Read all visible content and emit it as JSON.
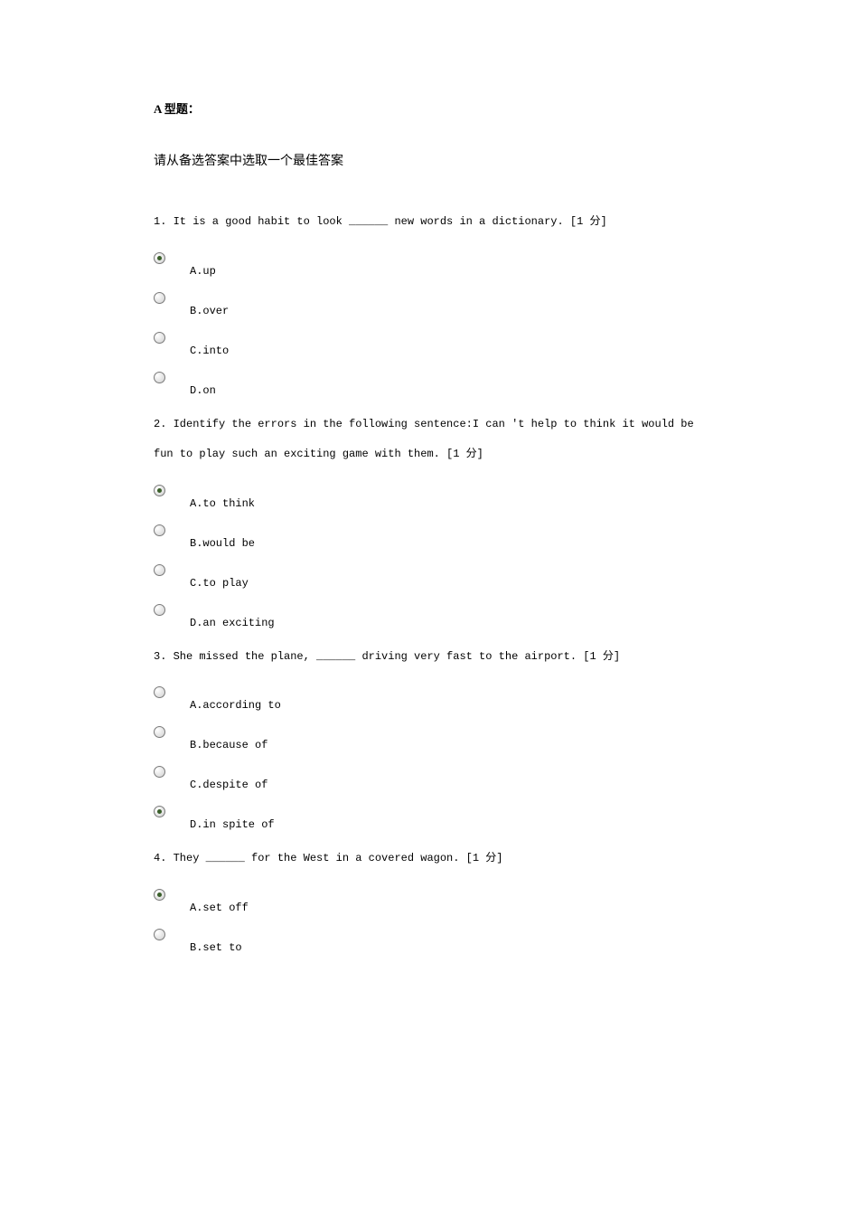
{
  "section_title": "A 型题：",
  "instruction": "请从备选答案中选取一个最佳答案",
  "questions": [
    {
      "number": "1",
      "text": "1. It is a good habit to look ______ new words in a dictionary. [1 分]",
      "options": [
        {
          "letter": "A",
          "text": "A.up",
          "selected": true
        },
        {
          "letter": "B",
          "text": "B.over",
          "selected": false
        },
        {
          "letter": "C",
          "text": "C.into",
          "selected": false
        },
        {
          "letter": "D",
          "text": "D.on",
          "selected": false
        }
      ]
    },
    {
      "number": "2",
      "text": "2. Identify the errors in the following sentence:I can 't help to think it would be fun to play such an exciting game with them. [1 分]",
      "options": [
        {
          "letter": "A",
          "text": "A.to think",
          "selected": true
        },
        {
          "letter": "B",
          "text": "B.would be",
          "selected": false
        },
        {
          "letter": "C",
          "text": "C.to play",
          "selected": false
        },
        {
          "letter": "D",
          "text": "D.an exciting",
          "selected": false
        }
      ]
    },
    {
      "number": "3",
      "text": "3. She missed the plane, ______ driving very fast to the airport. [1 分]",
      "options": [
        {
          "letter": "A",
          "text": "A.according to",
          "selected": false
        },
        {
          "letter": "B",
          "text": "B.because of",
          "selected": false
        },
        {
          "letter": "C",
          "text": "C.despite of",
          "selected": false
        },
        {
          "letter": "D",
          "text": "D.in spite of",
          "selected": true
        }
      ]
    },
    {
      "number": "4",
      "text": "4. They ______ for the West in a covered wagon. [1 分]",
      "options": [
        {
          "letter": "A",
          "text": "A.set off",
          "selected": true
        },
        {
          "letter": "B",
          "text": "B.set to",
          "selected": false
        }
      ]
    }
  ],
  "styles": {
    "background_color": "#ffffff",
    "title_color": "#000000",
    "title_fontsize": 13,
    "title_fontweight": "bold",
    "instruction_fontsize": 14,
    "question_font": "Courier New",
    "question_fontsize": 12,
    "radio_selected_color": "#3a5f2a",
    "radio_border_color": "#7a7a7a"
  }
}
